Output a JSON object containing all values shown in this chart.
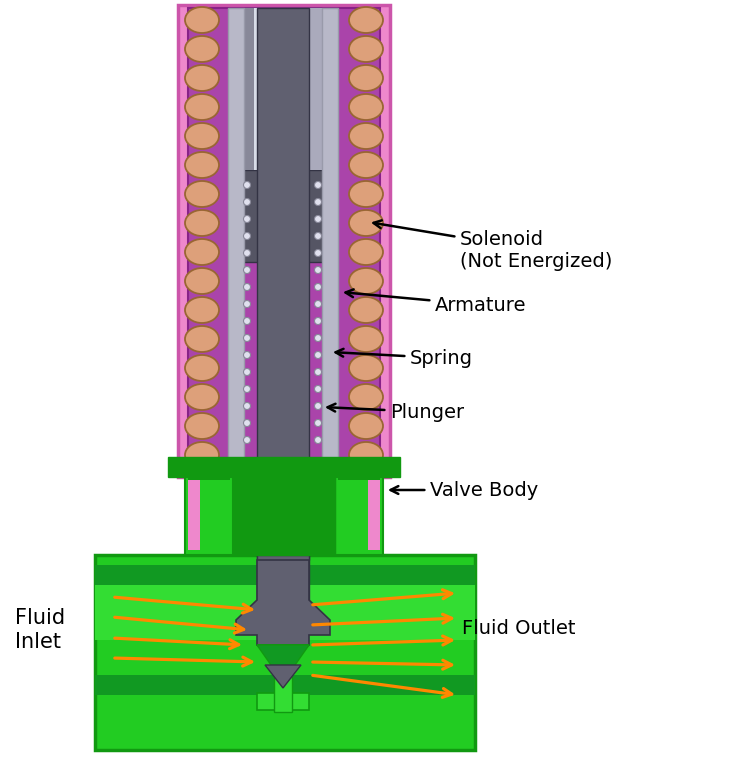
{
  "fig_width": 7.49,
  "fig_height": 7.65,
  "dpi": 100,
  "bg_color": "#ffffff",
  "pink_housing": "#ee88cc",
  "purple_winding": "#aa44aa",
  "coil_fill": "#dda07a",
  "coil_edge": "#996633",
  "armature_top_fill": "#c8c8d8",
  "armature_top_light": "#e0e8f0",
  "armature_sleeve_fill": "#b0b0c0",
  "plunger_fill": "#606070",
  "plunger_edge": "#333344",
  "spring_dot_fill": "#e0e0ee",
  "spring_dot_edge": "#888898",
  "green_main": "#22cc22",
  "green_dark": "#119911",
  "green_mid": "#33dd33",
  "green_light": "#88ee44",
  "green_shadow": "#119922",
  "orange_arrow": "#ff8800",
  "label_fontsize": 14,
  "label_color": "#000000",
  "labels": {
    "solenoid": "Solenoid\n(Not Energized)",
    "armature": "Armature",
    "spring": "Spring",
    "plunger": "Plunger",
    "valve_body": "Valve Body",
    "fluid_inlet": "Fluid\nInlet",
    "fluid_outlet": "Fluid Outlet"
  }
}
